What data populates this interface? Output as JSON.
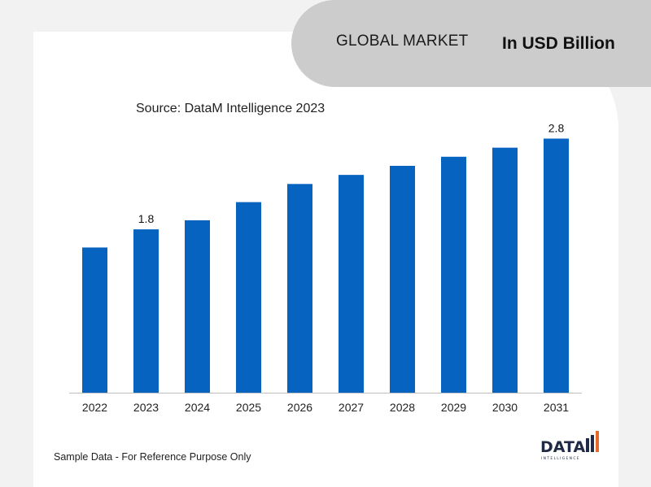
{
  "header": {
    "title": "GLOBAL MARKET",
    "unit": "In USD Billion"
  },
  "source": "Source: DataM Intelligence 2023",
  "footnote": "Sample Data - For Reference Purpose Only",
  "logo": {
    "text": "DATA",
    "subtext": "INTELLIGENCE"
  },
  "colors": {
    "bar": "#0763c0",
    "header_bg": "#cccccc",
    "page_bg": "#f2f2f2",
    "logo_accent": "#e8692c"
  },
  "chart_data": {
    "type": "bar",
    "title": "",
    "xlabel": "",
    "ylabel": "",
    "categories": [
      "2022",
      "2023",
      "2024",
      "2025",
      "2026",
      "2027",
      "2028",
      "2029",
      "2030",
      "2031"
    ],
    "values": [
      1.6,
      1.8,
      1.9,
      2.1,
      2.3,
      2.4,
      2.5,
      2.6,
      2.7,
      2.8
    ],
    "data_labels": [
      null,
      "1.8",
      null,
      null,
      null,
      null,
      null,
      null,
      null,
      "2.8"
    ],
    "ylim": [
      0,
      3.1
    ],
    "grid": false,
    "legend": "none"
  }
}
